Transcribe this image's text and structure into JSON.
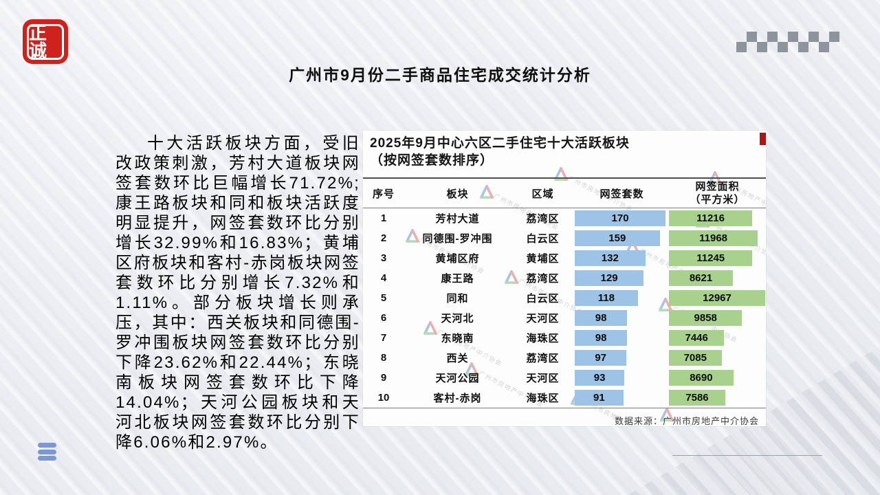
{
  "slide": {
    "logo_text": "正诚",
    "title": "广州市9月份二手商品住宅成交统计分析",
    "paragraph": "十大活跃板块方面，受旧改政策刺激，芳村大道板块网签套数环比巨幅增长71.72%; 康王路板块和同和板块活跃度明显提升，网签套数环比分别增长32.99%和16.83%；黄埔区府板块和客村-赤岗板块网签套数环比分别增长7.32%和1.11%。部分板块增长则承压，其中：西关板块和同德围-罗冲围板块网签套数环比分别下降23.62%和22.44%；东晓南板块网签套数环比下降14.04%；天河公园板块和天河北板块网签套数环比分别下降6.06%和2.97%。"
  },
  "table": {
    "title_line1": "2025年9月中心六区二手住宅十大活跃板块",
    "title_line2": "（按网签套数排序）",
    "headers": {
      "rank": "序号",
      "block": "板块",
      "district": "区域",
      "count": "网签套数",
      "area_line1": "网签面积",
      "area_line2": "（平方米）"
    },
    "source": "数据来源：广州市房地产中介协会",
    "watermark_text": "广州市房地产中介协会"
  },
  "chart_data": {
    "type": "table",
    "title": "2025年9月中心六区二手住宅十大活跃板块（按网签套数排序）",
    "columns": [
      "序号",
      "板块",
      "区域",
      "网签套数",
      "网签面积（平方米）"
    ],
    "rows": [
      [
        1,
        "芳村大道",
        "荔湾区",
        170,
        11216
      ],
      [
        2,
        "同德围-罗冲围",
        "白云区",
        159,
        11968
      ],
      [
        3,
        "黄埔区府",
        "黄埔区",
        132,
        11245
      ],
      [
        4,
        "康王路",
        "荔湾区",
        129,
        8621
      ],
      [
        5,
        "同和",
        "白云区",
        118,
        12967
      ],
      [
        6,
        "天河北",
        "天河区",
        98,
        9858
      ],
      [
        7,
        "东晓南",
        "海珠区",
        98,
        7446
      ],
      [
        8,
        "西关",
        "荔湾区",
        97,
        7085
      ],
      [
        9,
        "天河公园",
        "天河区",
        93,
        8690
      ],
      [
        10,
        "客村-赤岗",
        "海珠区",
        91,
        7586
      ]
    ],
    "bar_max": {
      "count": 170,
      "area": 12967
    },
    "layout": "data bars inside table cells, bars left-aligned, value labels centered in bars"
  },
  "colors": {
    "count_bar": "#9DC3E6",
    "area_bar": "#A9D18E",
    "brand_red": "#CF221C",
    "red_tab": "#B01515",
    "hamburger_blue": "#7D98D1",
    "checker_gray": "#8E949E",
    "background": "#EDEFF3"
  }
}
